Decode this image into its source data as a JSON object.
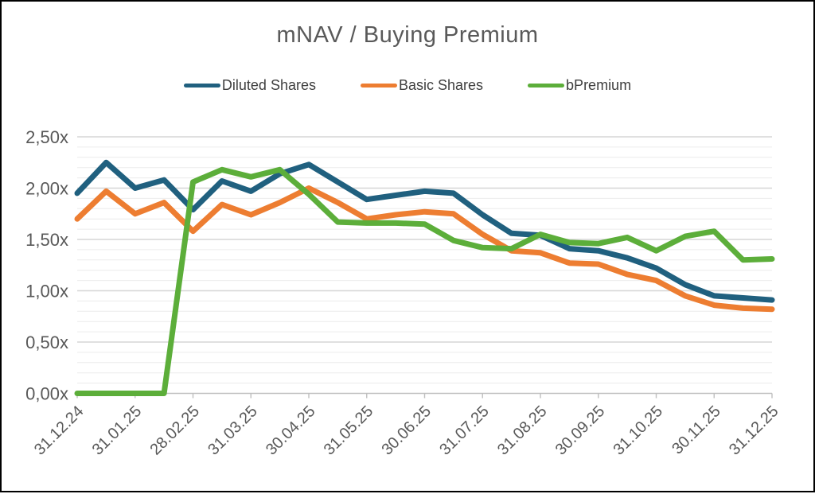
{
  "title": "mNAV / Buying Premium",
  "colors": {
    "accent_blue": "#20607F",
    "accent_orange": "#ED7D31",
    "accent_green": "#5CAE3A",
    "text_gray": "#595959",
    "legend_text": "#3f3f3f",
    "grid_minor": "#ECECEC",
    "grid_major": "#D6D6D6",
    "axis_line": "#BFBFBF"
  },
  "chart_data": {
    "type": "line",
    "title": "mNAV / Buying Premium",
    "legend_position": "top",
    "grid": "horizontal minor every 0.1, major every 0.5",
    "ylim": [
      0,
      2.5
    ],
    "y_ticks": [
      "0,00x",
      "0,50x",
      "1,00x",
      "1,50x",
      "2,00x",
      "2,50x"
    ],
    "x_labels": [
      "31.12.24",
      "31.01.25",
      "28.02.25",
      "31.03.25",
      "30.04.25",
      "31.05.25",
      "30.06.25",
      "31.07.25",
      "31.08.25",
      "30.09.25",
      "31.10.25",
      "30.11.25",
      "31.12.25"
    ],
    "points_per_label_interval": 2,
    "series": [
      {
        "name": "Diluted Shares",
        "color": "#20607F",
        "values": [
          1.95,
          2.25,
          2.0,
          2.08,
          1.79,
          2.07,
          1.97,
          2.14,
          2.23,
          2.06,
          1.89,
          1.93,
          1.97,
          1.95,
          1.74,
          1.56,
          1.54,
          1.41,
          1.39,
          1.32,
          1.22,
          1.06,
          0.95,
          0.93,
          0.91
        ]
      },
      {
        "name": "Basic Shares",
        "color": "#ED7D31",
        "values": [
          1.7,
          1.97,
          1.75,
          1.86,
          1.58,
          1.84,
          1.74,
          1.86,
          2.0,
          1.86,
          1.7,
          1.74,
          1.77,
          1.75,
          1.55,
          1.39,
          1.37,
          1.27,
          1.26,
          1.16,
          1.1,
          0.95,
          0.86,
          0.83,
          0.82
        ]
      },
      {
        "name": "bPremium",
        "color": "#5CAE3A",
        "values": [
          0.0,
          0.0,
          0.0,
          0.0,
          2.06,
          2.18,
          2.11,
          2.18,
          1.94,
          1.67,
          1.66,
          1.66,
          1.65,
          1.49,
          1.42,
          1.41,
          1.55,
          1.47,
          1.46,
          1.52,
          1.39,
          1.53,
          1.58,
          1.3,
          1.31
        ]
      }
    ]
  }
}
